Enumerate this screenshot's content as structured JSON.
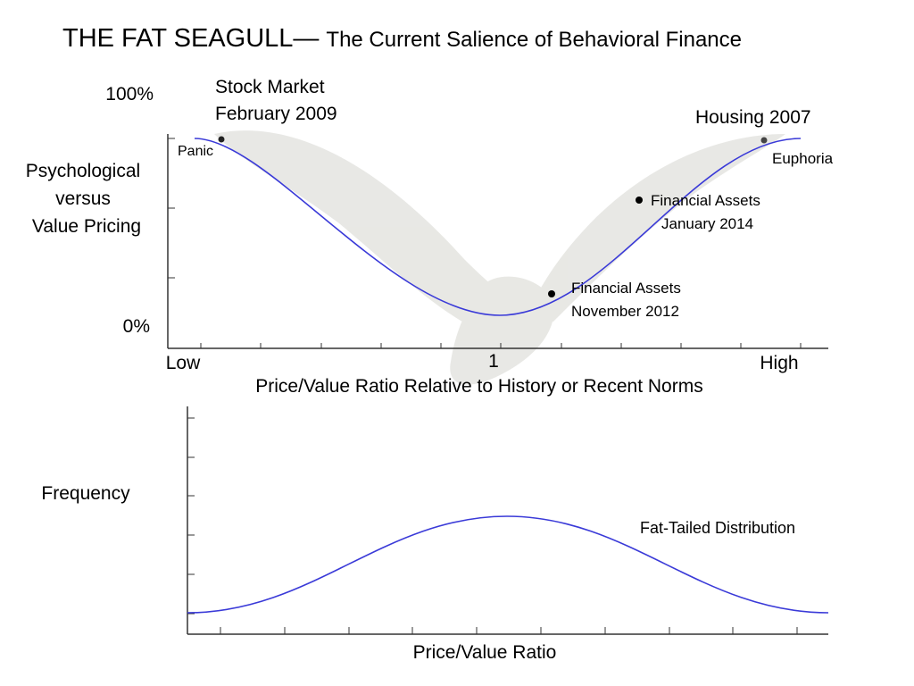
{
  "title": {
    "main": "THE FAT SEAGULL—",
    "sub": "The Current Salience of Behavioral Finance"
  },
  "top_chart": {
    "y_top_label": "100%",
    "y_bottom_label": "0%",
    "y_axis_label": [
      "Psychological",
      "versus",
      "Value Pricing"
    ],
    "x_labels": {
      "low": "Low",
      "mid": "1",
      "high": "High"
    },
    "x_axis_label": "Price/Value Ratio Relative to History or Recent Norms",
    "annotations": {
      "stock_market": [
        "Stock Market",
        "February 2009"
      ],
      "panic": "Panic",
      "housing": "Housing 2007",
      "euphoria": "Euphoria",
      "assets_2014": [
        "Financial Assets",
        "January 2014"
      ],
      "assets_2012": [
        "Financial Assets",
        "November 2012"
      ]
    }
  },
  "bottom_chart": {
    "y_axis_label": "Frequency",
    "annotation": "Fat-Tailed Distribution",
    "x_axis_label": "Price/Value Ratio"
  }
}
